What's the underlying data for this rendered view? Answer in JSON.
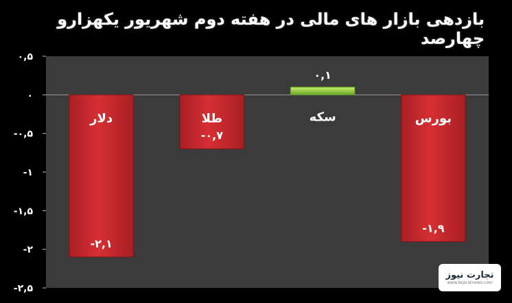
{
  "chart_data": {
    "type": "bar",
    "title": "بازدهی بازار های مالی در هفته دوم شهریور یکهزارو چهارصد",
    "xlabel": "",
    "ylabel": "",
    "categories": [
      "دلار",
      "طلا",
      "سکه",
      "بورس"
    ],
    "values": [
      -2.1,
      -0.7,
      0.1,
      -1.9
    ],
    "value_labels": [
      "-۲,۱",
      "-۰,۷",
      "۰,۱",
      "-۱,۹"
    ],
    "ylim": [
      -2.5,
      0.5
    ],
    "yticks": [
      0.5,
      0,
      -0.5,
      -1,
      -1.5,
      -2,
      -2.5
    ],
    "ytick_labels": [
      "۰,۵",
      "۰",
      "-۰,۵",
      "-۱",
      "-۱,۵",
      "-۲",
      "-۲,۵"
    ],
    "grid": false,
    "legend": "none",
    "colors": {
      "background": "#000000",
      "plot_area": "#3b3b3b",
      "negative_bar": "#d62f33",
      "positive_bar": "#8dcf3a",
      "text": "#ffffff"
    }
  },
  "watermark": {
    "text": "تجارت نیوز",
    "subtext": "www.tejaratnews.com"
  }
}
